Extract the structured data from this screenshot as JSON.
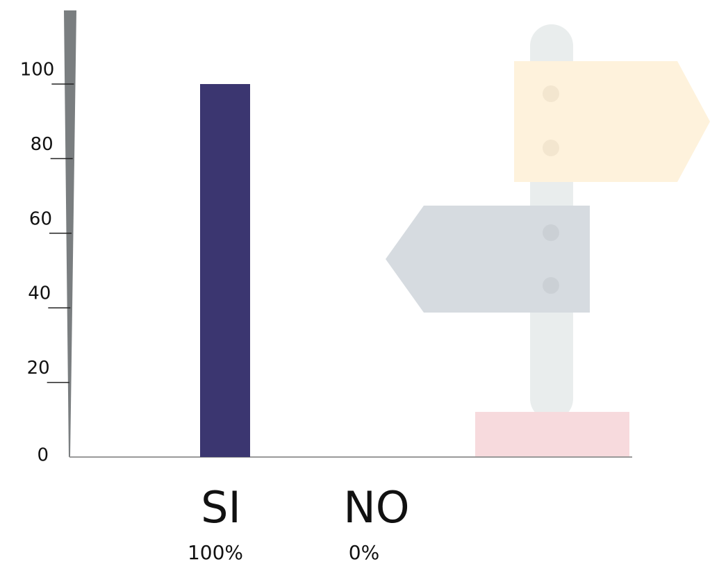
{
  "chart_data": {
    "type": "bar",
    "categories": [
      "SI",
      "NO"
    ],
    "values": [
      100,
      0
    ],
    "value_labels": [
      "100%",
      "0%"
    ],
    "color": "#3b3670",
    "ylim": [
      0,
      100
    ],
    "yticks": [
      0,
      20,
      40,
      60,
      80,
      100
    ],
    "grid": false
  }
}
